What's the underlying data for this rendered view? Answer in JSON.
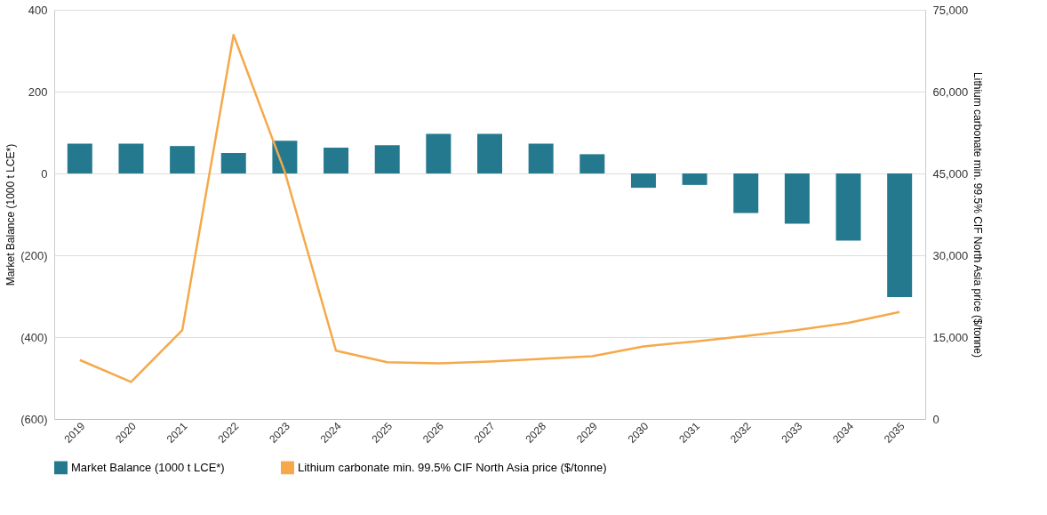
{
  "chart_data": {
    "type": "bar",
    "ylabel": "Market Balance (1000 t LCE*)",
    "y2label": "Lithium carbonate min. 99.5% CIF North Asia price ($/tonne)",
    "categories": [
      "2019",
      "2020",
      "2021",
      "2022",
      "2023",
      "2024",
      "2025",
      "2026",
      "2027",
      "2028",
      "2029",
      "2030",
      "2031",
      "2032",
      "2033",
      "2034",
      "2035"
    ],
    "series": [
      {
        "name": "Market Balance (1000 t LCE*)",
        "color": "#24798e",
        "values": [
          73,
          73,
          67,
          50,
          80,
          63,
          69,
          97,
          97,
          73,
          47,
          -35,
          -28,
          -97,
          -123,
          -164,
          -302
        ]
      },
      {
        "name": "Lithium carbonate min. 99.5% CIF North Asia price ($/tonne)",
        "type": "line",
        "axis": "y2",
        "color": "#f5a94a",
        "values": [
          10800,
          6800,
          16300,
          70400,
          45300,
          12500,
          10400,
          10200,
          10500,
          11000,
          11500,
          13300,
          14200,
          15200,
          16300,
          17600,
          19600
        ]
      }
    ],
    "ylim": [
      -600,
      400
    ],
    "yticks": [
      {
        "value": -600,
        "label": "(600)"
      },
      {
        "value": -400,
        "label": "(400)"
      },
      {
        "value": -200,
        "label": "(200)"
      },
      0,
      200,
      400
    ],
    "y2lim": [
      0,
      75000
    ],
    "y2ticks": [
      {
        "value": 0,
        "label": "0"
      },
      {
        "value": 15000,
        "label": "15,000"
      },
      {
        "value": 30000,
        "label": "30,000"
      },
      {
        "value": 45000,
        "label": "45,000"
      },
      {
        "value": 60000,
        "label": "60,000"
      },
      {
        "value": 75000,
        "label": "75,000"
      }
    ],
    "grid": "y",
    "legend": "bottom"
  }
}
